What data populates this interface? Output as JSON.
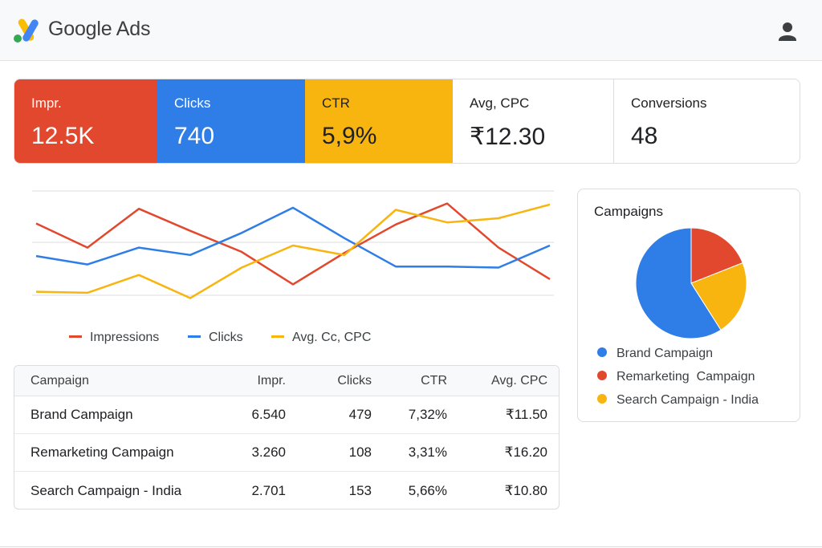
{
  "app": {
    "title": "Google Ads",
    "logo": "google-ads-logo",
    "account_icon": "person-icon"
  },
  "kpis": [
    {
      "label": "Impr.",
      "value": "12.5K",
      "color": "#e2482d"
    },
    {
      "label": "Clicks",
      "value": "740",
      "color": "#2f7de6"
    },
    {
      "label": "CTR",
      "value": "5,9%",
      "color": "#f8b40f"
    },
    {
      "label": "Avg, CPC",
      "value": "₹12.30"
    },
    {
      "label": "Conversions",
      "value": "48"
    }
  ],
  "chart_data": {
    "type": "line",
    "x": [
      1,
      2,
      3,
      4,
      5,
      6,
      7,
      8,
      9,
      10,
      11
    ],
    "series": [
      {
        "name": "Impressions",
        "color": "#e2482d",
        "values": [
          66,
          43,
          80,
          59,
          39,
          8,
          38,
          65,
          85,
          43,
          13
        ]
      },
      {
        "name": "Clicks",
        "color": "#2f7de6",
        "values": [
          35,
          27,
          43,
          36,
          57,
          81,
          52,
          25,
          25,
          24,
          45
        ]
      },
      {
        "name": "Avg. Cc, CPC",
        "color": "#f8b40f",
        "values": [
          1,
          0,
          17,
          -5,
          24,
          45,
          36,
          79,
          67,
          71,
          84
        ]
      }
    ],
    "grid": true,
    "ylim": [
      -10,
      100
    ]
  },
  "table": {
    "headers": [
      "Campaign",
      "Impr.",
      "Clicks",
      "CTR",
      "Avg. CPC"
    ],
    "rows": [
      [
        "Brand Campaign",
        "6.540",
        "479",
        "7,32%",
        "₹11.50"
      ],
      [
        "Remarketing Campaign",
        "3.260",
        "108",
        "3,31%",
        "₹16.20"
      ],
      [
        "Search Campaign - India",
        "2.701",
        "153",
        "5,66%",
        "₹10.80"
      ]
    ]
  },
  "pie": {
    "title": "Campaigns",
    "slices": [
      {
        "label": "Brand Campaign",
        "value": 0.59,
        "color": "#2f7de6"
      },
      {
        "label": "Remarketing  Campaign",
        "value": 0.19,
        "color": "#e2482d"
      },
      {
        "label": "Search Campaign - India",
        "value": 0.22,
        "color": "#f8b40f"
      }
    ]
  }
}
